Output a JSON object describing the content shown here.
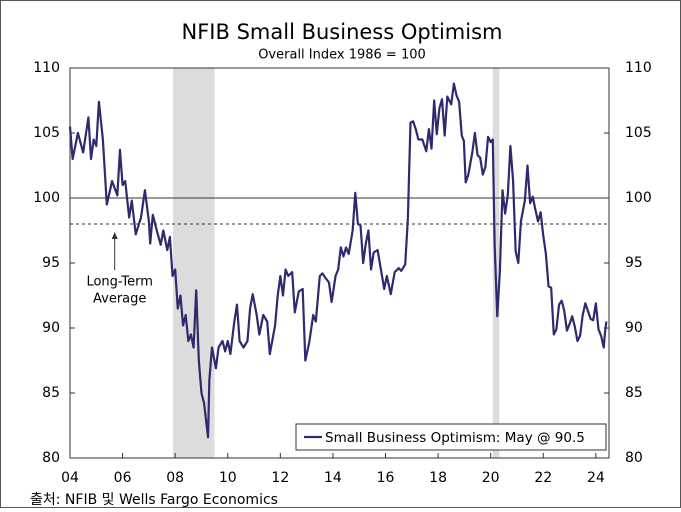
{
  "chart_data": {
    "type": "line",
    "title": "NFIB Small Business Optimism",
    "subtitle": "Overall Index 1986 = 100",
    "source": "출처: NFIB 및 Wells Fargo Economics",
    "annotation": [
      "Long-Term",
      "Average"
    ],
    "xlim": [
      2004,
      2024.5
    ],
    "xticks": [
      {
        "value": 2004,
        "label": "04"
      },
      {
        "value": 2006,
        "label": "06"
      },
      {
        "value": 2008,
        "label": "08"
      },
      {
        "value": 2010,
        "label": "10"
      },
      {
        "value": 2012,
        "label": "12"
      },
      {
        "value": 2014,
        "label": "14"
      },
      {
        "value": 2016,
        "label": "16"
      },
      {
        "value": 2018,
        "label": "18"
      },
      {
        "value": 2020,
        "label": "20"
      },
      {
        "value": 2022,
        "label": "22"
      },
      {
        "value": 2024,
        "label": "24"
      }
    ],
    "ylim": [
      80,
      110
    ],
    "yticks": [
      80,
      85,
      90,
      95,
      100,
      105,
      110
    ],
    "grid": false,
    "legend": "lower right",
    "recessions": [
      [
        2007.92,
        2009.5
      ],
      [
        2020.08,
        2020.33
      ]
    ],
    "reference_lines": [
      {
        "value": 100,
        "style": "solid"
      },
      {
        "value": 98,
        "style": "dashed"
      }
    ],
    "x": [
      2004.0,
      2004.1,
      2004.3,
      2004.5,
      2004.7,
      2004.8,
      2004.9,
      2005.0,
      2005.1,
      2005.25,
      2005.4,
      2005.6,
      2005.8,
      2005.9,
      2006.0,
      2006.1,
      2006.25,
      2006.35,
      2006.5,
      2006.7,
      2006.85,
      2007.0,
      2007.05,
      2007.15,
      2007.3,
      2007.45,
      2007.55,
      2007.7,
      2007.8,
      2007.9,
      2008.0,
      2008.1,
      2008.2,
      2008.3,
      2008.4,
      2008.5,
      2008.6,
      2008.7,
      2008.8,
      2008.9,
      2009.0,
      2009.1,
      2009.25,
      2009.3,
      2009.4,
      2009.55,
      2009.65,
      2009.8,
      2009.9,
      2010.0,
      2010.1,
      2010.25,
      2010.35,
      2010.45,
      2010.6,
      2010.75,
      2010.85,
      2010.95,
      2011.1,
      2011.2,
      2011.35,
      2011.5,
      2011.6,
      2011.8,
      2011.9,
      2012.0,
      2012.1,
      2012.2,
      2012.3,
      2012.45,
      2012.55,
      2012.7,
      2012.85,
      2012.95,
      2013.1,
      2013.25,
      2013.35,
      2013.5,
      2013.6,
      2013.7,
      2013.85,
      2013.95,
      2014.1,
      2014.2,
      2014.3,
      2014.4,
      2014.5,
      2014.6,
      2014.75,
      2014.85,
      2014.95,
      2015.05,
      2015.15,
      2015.25,
      2015.35,
      2015.45,
      2015.55,
      2015.7,
      2015.85,
      2015.95,
      2016.05,
      2016.2,
      2016.35,
      2016.5,
      2016.6,
      2016.75,
      2016.85,
      2016.95,
      2017.05,
      2017.15,
      2017.25,
      2017.4,
      2017.55,
      2017.65,
      2017.75,
      2017.85,
      2017.95,
      2018.05,
      2018.15,
      2018.25,
      2018.35,
      2018.5,
      2018.6,
      2018.7,
      2018.8,
      2018.9,
      2018.98,
      2019.05,
      2019.15,
      2019.3,
      2019.4,
      2019.5,
      2019.6,
      2019.7,
      2019.8,
      2019.9,
      2020.0,
      2020.08,
      2020.15,
      2020.25,
      2020.35,
      2020.45,
      2020.55,
      2020.65,
      2020.75,
      2020.85,
      2020.95,
      2021.05,
      2021.15,
      2021.3,
      2021.4,
      2021.5,
      2021.6,
      2021.7,
      2021.8,
      2021.9,
      2022.0,
      2022.1,
      2022.2,
      2022.3,
      2022.4,
      2022.5,
      2022.6,
      2022.7,
      2022.8,
      2022.9,
      2023.0,
      2023.1,
      2023.2,
      2023.3,
      2023.4,
      2023.5,
      2023.6,
      2023.7,
      2023.8,
      2023.9,
      2024.0,
      2024.1,
      2024.2,
      2024.3,
      2024.35,
      2024.4
    ],
    "series": [
      {
        "name": "Small Business Optimism: May @ 90.5",
        "color": "#2d2a6e",
        "values": [
          105.5,
          103,
          105,
          103.5,
          106.2,
          103,
          104.5,
          104,
          107.4,
          104.5,
          99.5,
          101.3,
          100.2,
          103.7,
          101,
          101.3,
          98.5,
          99.8,
          97.2,
          98.5,
          100.6,
          98.2,
          96.5,
          98.7,
          97.5,
          96.4,
          97.5,
          96,
          97,
          94,
          94.5,
          91.5,
          92.5,
          90.2,
          91,
          89,
          89.5,
          88.5,
          92.9,
          87.5,
          85,
          84.2,
          81.6,
          86,
          88.5,
          86.9,
          88.5,
          89,
          88.2,
          89,
          88,
          90.5,
          91.8,
          89,
          88.5,
          89,
          91.5,
          92.6,
          91,
          89.5,
          91,
          90.5,
          88,
          90.2,
          92.5,
          94,
          92.5,
          94.5,
          94,
          94.3,
          91.2,
          92.8,
          93,
          87.5,
          88.9,
          91,
          90.5,
          94,
          94.2,
          93.9,
          93.5,
          92,
          94,
          94.5,
          96.2,
          95.5,
          96.2,
          95.7,
          97.5,
          100.4,
          98,
          97.9,
          95,
          96.5,
          97.5,
          94.5,
          95.8,
          96,
          94.2,
          93,
          94,
          92.6,
          94.3,
          94.6,
          94.4,
          94.9,
          98.4,
          105.8,
          105.9,
          105.3,
          104.5,
          104.5,
          103.6,
          105.3,
          103.8,
          107.5,
          104.9,
          106.9,
          107.6,
          104.8,
          107.8,
          107.2,
          108.8,
          107.9,
          107.4,
          104.8,
          104.4,
          101.2,
          101.8,
          103.5,
          105,
          103.3,
          103.1,
          101.8,
          102.4,
          104.7,
          104.3,
          104.5,
          96.4,
          90.9,
          94.4,
          100.6,
          98.8,
          100.2,
          104,
          101.4,
          95.9,
          95,
          98.2,
          99.8,
          102.5,
          99.6,
          100.1,
          99.1,
          98.2,
          98.9,
          97.1,
          95.7,
          93.2,
          93.1,
          89.5,
          89.9,
          91.8,
          92.1,
          91.3,
          89.8,
          90.3,
          90.9,
          90.1,
          89,
          89.4,
          91,
          91.9,
          91.3,
          90.7,
          90.6,
          91.9,
          89.9,
          89.4,
          88.5,
          89.7,
          90.5
        ]
      }
    ]
  }
}
